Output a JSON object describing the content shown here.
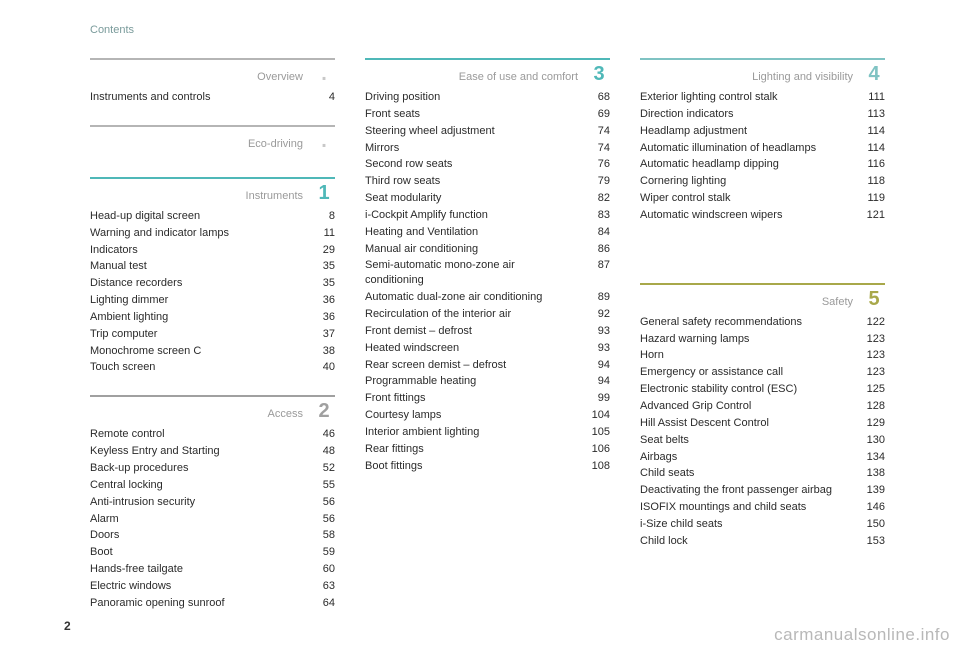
{
  "header": "Contents",
  "page_number": "2",
  "watermark": "carmanualsonline.info",
  "columns": [
    {
      "sections": [
        {
          "title": "Overview",
          "num": ".",
          "rule_color": "#b5b5b5",
          "num_color": "#c8c8c8",
          "items": [
            {
              "label": "Instruments and controls",
              "page": "4"
            }
          ]
        },
        {
          "title": "Eco-driving",
          "num": ".",
          "rule_color": "#b5b5b5",
          "num_color": "#c8c8c8",
          "items": []
        },
        {
          "title": "Instruments",
          "num": "1",
          "rule_color": "#4fb8b8",
          "num_color": "#4fb8b8",
          "items": [
            {
              "label": "Head-up digital screen",
              "page": "8"
            },
            {
              "label": "Warning and indicator lamps",
              "page": "11"
            },
            {
              "label": "Indicators",
              "page": "29"
            },
            {
              "label": "Manual test",
              "page": "35"
            },
            {
              "label": "Distance recorders",
              "page": "35"
            },
            {
              "label": "Lighting dimmer",
              "page": "36"
            },
            {
              "label": "Ambient lighting",
              "page": "36"
            },
            {
              "label": "Trip computer",
              "page": "37"
            },
            {
              "label": "Monochrome screen C",
              "page": "38"
            },
            {
              "label": "Touch screen",
              "page": "40"
            }
          ]
        },
        {
          "title": "Access",
          "num": "2",
          "rule_color": "#a0a0a0",
          "num_color": "#a0a0a0",
          "items": [
            {
              "label": "Remote control",
              "page": "46"
            },
            {
              "label": "Keyless Entry and Starting",
              "page": "48"
            },
            {
              "label": "Back-up procedures",
              "page": "52"
            },
            {
              "label": "Central locking",
              "page": "55"
            },
            {
              "label": "Anti-intrusion security",
              "page": "56"
            },
            {
              "label": "Alarm",
              "page": "56"
            },
            {
              "label": "Doors",
              "page": "58"
            },
            {
              "label": "Boot",
              "page": "59"
            },
            {
              "label": "Hands-free tailgate",
              "page": "60"
            },
            {
              "label": "Electric windows",
              "page": "63"
            },
            {
              "label": "Panoramic opening sunroof",
              "page": "64"
            }
          ]
        }
      ]
    },
    {
      "sections": [
        {
          "title": "Ease of use and comfort",
          "num": "3",
          "rule_color": "#4fb8b8",
          "num_color": "#4fb8b8",
          "items": [
            {
              "label": "Driving position",
              "page": "68"
            },
            {
              "label": "Front seats",
              "page": "69"
            },
            {
              "label": "Steering wheel adjustment",
              "page": "74"
            },
            {
              "label": "Mirrors",
              "page": "74"
            },
            {
              "label": "Second row seats",
              "page": "76"
            },
            {
              "label": "Third row seats",
              "page": "79"
            },
            {
              "label": "Seat modularity",
              "page": "82"
            },
            {
              "label": "i-Cockpit Amplify function",
              "page": "83"
            },
            {
              "label": "Heating and Ventilation",
              "page": "84"
            },
            {
              "label": "Manual air conditioning",
              "page": "86"
            },
            {
              "label": "Semi-automatic mono-zone air conditioning",
              "page": "87"
            },
            {
              "label": "Automatic dual-zone air conditioning",
              "page": "89"
            },
            {
              "label": "Recirculation of the interior air",
              "page": "92"
            },
            {
              "label": "Front demist – defrost",
              "page": "93"
            },
            {
              "label": "Heated windscreen",
              "page": "93"
            },
            {
              "label": "Rear screen demist – defrost",
              "page": "94"
            },
            {
              "label": "Programmable heating",
              "page": "94"
            },
            {
              "label": "Front fittings",
              "page": "99"
            },
            {
              "label": "Courtesy lamps",
              "page": "104"
            },
            {
              "label": "Interior ambient lighting",
              "page": "105"
            },
            {
              "label": "Rear fittings",
              "page": "106"
            },
            {
              "label": "Boot fittings",
              "page": "108"
            }
          ]
        }
      ]
    },
    {
      "sections": [
        {
          "title": "Lighting and visibility",
          "num": "4",
          "rule_color": "#7fc3c3",
          "num_color": "#7fc3c3",
          "items": [
            {
              "label": "Exterior lighting control stalk",
              "page": "111"
            },
            {
              "label": "Direction indicators",
              "page": "113"
            },
            {
              "label": "Headlamp adjustment",
              "page": "114"
            },
            {
              "label": "Automatic illumination of headlamps",
              "page": "114"
            },
            {
              "label": "Automatic headlamp dipping",
              "page": "116"
            },
            {
              "label": "Cornering lighting",
              "page": "118"
            },
            {
              "label": "Wiper control stalk",
              "page": "119"
            },
            {
              "label": "Automatic windscreen wipers",
              "page": "121"
            }
          ]
        },
        {
          "title": "Safety",
          "num": "5",
          "rule_color": "#a8a84a",
          "num_color": "#a8a84a",
          "spacer_before": true,
          "items": [
            {
              "label": "General safety recommendations",
              "page": "122"
            },
            {
              "label": "Hazard warning lamps",
              "page": "123"
            },
            {
              "label": "Horn",
              "page": "123"
            },
            {
              "label": "Emergency or assistance call",
              "page": "123"
            },
            {
              "label": "Electronic stability control (ESC)",
              "page": "125"
            },
            {
              "label": "Advanced Grip Control",
              "page": "128"
            },
            {
              "label": "Hill Assist Descent Control",
              "page": "129"
            },
            {
              "label": "Seat belts",
              "page": "130"
            },
            {
              "label": "Airbags",
              "page": "134"
            },
            {
              "label": "Child seats",
              "page": "138"
            },
            {
              "label": "Deactivating the front passenger airbag",
              "page": "139"
            },
            {
              "label": "ISOFIX mountings and child seats",
              "page": "146"
            },
            {
              "label": "i-Size child seats",
              "page": "150"
            },
            {
              "label": "Child lock",
              "page": "153"
            }
          ]
        }
      ]
    }
  ]
}
